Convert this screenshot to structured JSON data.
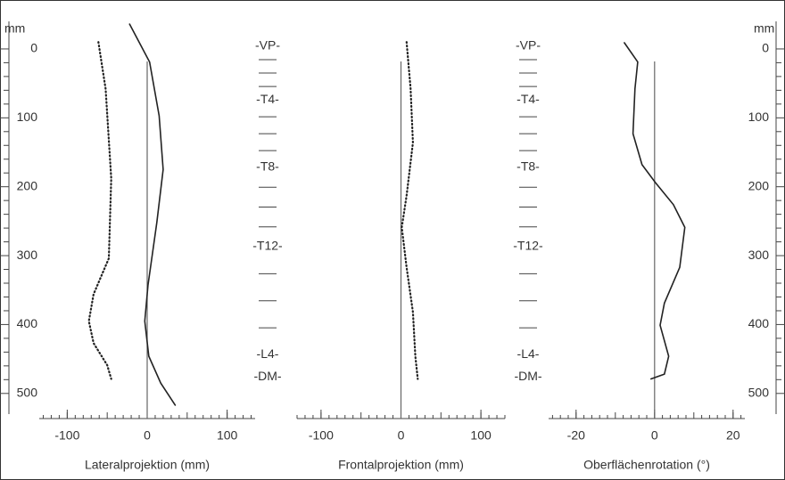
{
  "chart_data": [
    {
      "type": "line",
      "xlabel": "Lateralprojektion (mm)",
      "ylabel": "mm",
      "xlim": [
        -135,
        135
      ],
      "xticks": [
        -100,
        0,
        100
      ],
      "ylim": [
        -40,
        530
      ],
      "yticks": [
        0,
        100,
        200,
        300,
        400,
        500
      ],
      "series": [
        {
          "style": "solid",
          "color": "#222",
          "x": [
            -22,
            3,
            15,
            20,
            12,
            1,
            -3,
            2,
            17,
            35
          ],
          "y": [
            -36,
            19,
            97,
            175,
            252,
            343,
            395,
            446,
            485,
            517
          ]
        },
        {
          "style": "dotted",
          "color": "#222",
          "x": [
            -61,
            -52,
            -45,
            -48,
            -67,
            -73,
            -67,
            -50,
            -45
          ],
          "y": [
            -10,
            58,
            188,
            304,
            356,
            395,
            427,
            459,
            479
          ]
        }
      ],
      "vertebrae": {
        "labels": [
          "-VP-",
          "-T4-",
          "-T8-",
          "-T12-",
          "-L4-",
          "-DM-"
        ],
        "positions": [
          -4,
          74,
          172,
          287,
          444,
          476
        ]
      }
    },
    {
      "type": "line",
      "xlabel": "Frontalprojektion (mm)",
      "xlim": [
        -130,
        130
      ],
      "xticks": [
        -100,
        0,
        100
      ],
      "ylim": [
        -40,
        530
      ],
      "series": [
        {
          "style": "dotted",
          "color": "#222",
          "x": [
            7,
            12,
            15,
            7,
            1,
            7,
            15,
            18,
            21
          ],
          "y": [
            -10,
            58,
            136,
            213,
            259,
            317,
            382,
            446,
            479
          ]
        }
      ],
      "vertebrae": {
        "labels": [
          "-VP-",
          "-T4-",
          "-T8-",
          "-T12-",
          "-L4-",
          "-DM-"
        ],
        "positions": [
          -4,
          74,
          172,
          287,
          444,
          476
        ]
      }
    },
    {
      "type": "line",
      "xlabel": "Oberflächenrotation (°)",
      "ylabel": "mm",
      "xlim": [
        -27,
        23
      ],
      "xticks": [
        -20,
        0,
        20
      ],
      "ylim": [
        -40,
        530
      ],
      "yticks": [
        0,
        100,
        200,
        300,
        400,
        500
      ],
      "series": [
        {
          "style": "solid",
          "color": "#222",
          "x": [
            -7.7,
            -4.3,
            -5,
            -5.5,
            -3.2,
            0.2,
            4.8,
            7.7,
            6.4,
            2.5,
            1.4,
            3.6,
            2.5,
            -0.9
          ],
          "y": [
            -9,
            19,
            58,
            123,
            168,
            194,
            226,
            259,
            317,
            369,
            401,
            446,
            472,
            479
          ]
        }
      ]
    }
  ]
}
